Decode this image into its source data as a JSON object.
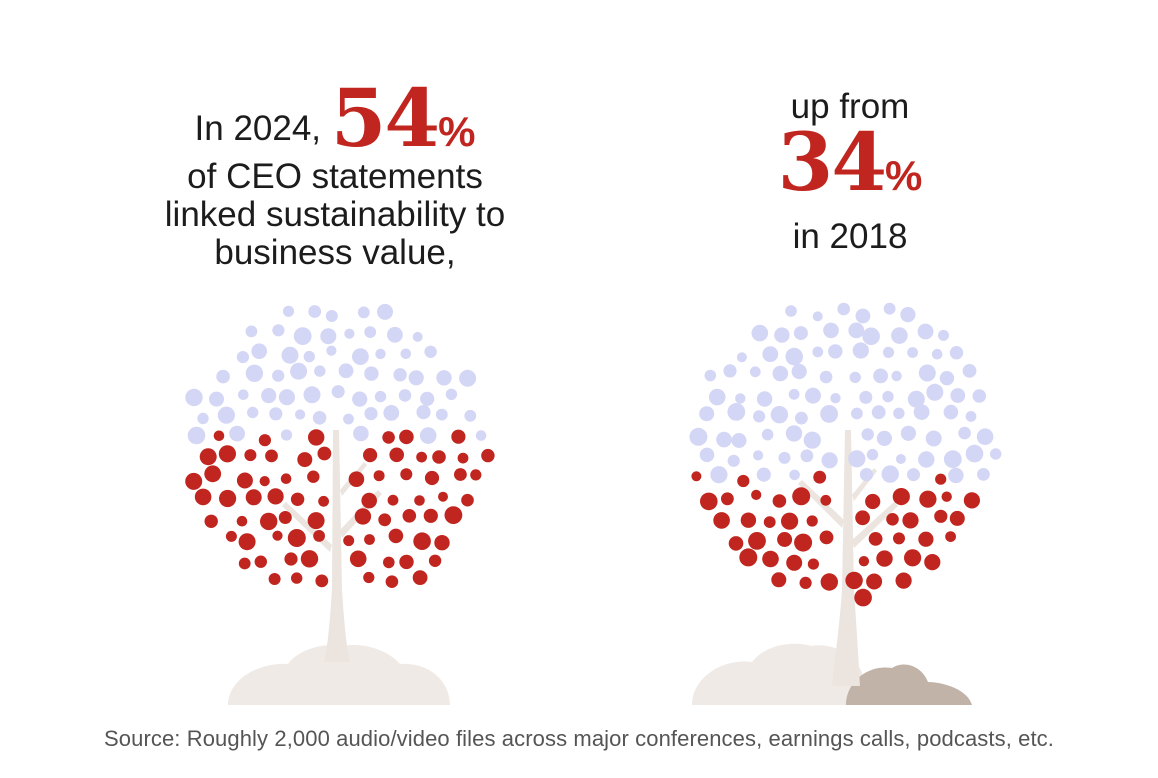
{
  "left": {
    "lead_text": "In 2024,",
    "number": "54",
    "percent_sign": "%",
    "line2": "of CEO statements",
    "line3": "linked sustainability to",
    "line4": "business value,",
    "share": 0.54
  },
  "right": {
    "lead_text": "up from",
    "number": "34",
    "percent_sign": "%",
    "tail_text": "in 2018",
    "share": 0.34
  },
  "source": "Source: Roughly 2,000 audio/video files across major conferences, earnings calls, podcasts, etc.",
  "colors": {
    "accent_red": "#c0261f",
    "dot_lavender": "#d4d6f5",
    "trunk": "#ebe4df",
    "ground_light": "#efeae6",
    "ground_dark": "#c1b3a8",
    "text": "#1c1c1c",
    "source_text": "#555555"
  }
}
